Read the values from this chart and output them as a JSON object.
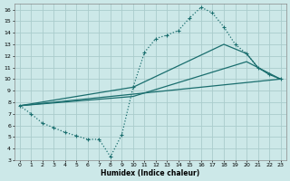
{
  "xlabel": "Humidex (Indice chaleur)",
  "bg_color": "#cce8e8",
  "grid_color": "#aacccc",
  "line_color": "#1a6e6e",
  "xlim": [
    -0.5,
    23.5
  ],
  "ylim": [
    3,
    16.5
  ],
  "xticks": [
    0,
    1,
    2,
    3,
    4,
    5,
    6,
    7,
    8,
    9,
    10,
    11,
    12,
    13,
    14,
    15,
    16,
    17,
    18,
    19,
    20,
    21,
    22,
    23
  ],
  "yticks": [
    3,
    4,
    5,
    6,
    7,
    8,
    9,
    10,
    11,
    12,
    13,
    14,
    15,
    16
  ],
  "line1_x": [
    0,
    1,
    2,
    3,
    4,
    5,
    6,
    7,
    8,
    9,
    10,
    11,
    12,
    13,
    14,
    15,
    16,
    17,
    18,
    19,
    20,
    21,
    22,
    23
  ],
  "line1_y": [
    7.7,
    7.0,
    6.2,
    5.8,
    5.4,
    5.1,
    4.8,
    4.8,
    3.3,
    5.2,
    9.3,
    12.3,
    13.5,
    13.8,
    14.2,
    15.3,
    16.2,
    15.7,
    14.5,
    13.0,
    12.2,
    11.0,
    10.4,
    10.0
  ],
  "line2_x": [
    0,
    23
  ],
  "line2_y": [
    7.7,
    10.0
  ],
  "line3_x": [
    0,
    10,
    18,
    20,
    21,
    22,
    23
  ],
  "line3_y": [
    7.7,
    9.3,
    13.0,
    12.2,
    11.0,
    10.4,
    10.0
  ],
  "line4_x": [
    0,
    10,
    20,
    23
  ],
  "line4_y": [
    7.7,
    8.5,
    11.5,
    10.0
  ]
}
